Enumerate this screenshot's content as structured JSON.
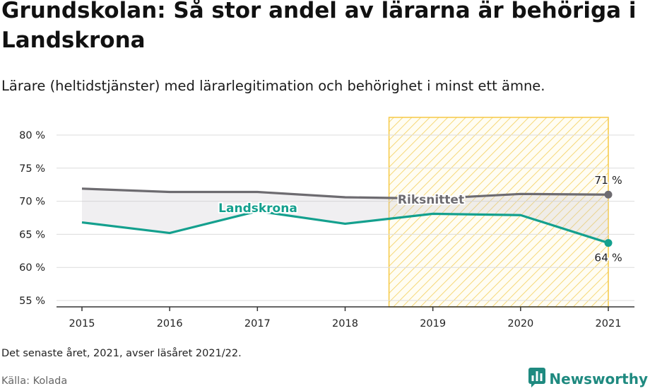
{
  "title": "Grundskolan: Så stor andel av lärarna är behöriga i Landskrona",
  "subtitle": "Lärare (heltidstjänster) med lärarlegitimation och behörighet i minst ett ämne.",
  "note": "Det senaste året, 2021, avser läsåret 2021/22.",
  "source": "Källa: Kolada",
  "brand": {
    "name": "Newsworthy",
    "icon": "bar-chart-speech-bubble-icon",
    "color": "#1f8a80"
  },
  "chart_data": {
    "type": "line",
    "title": "",
    "xlabel": "",
    "ylabel": "",
    "x": [
      2015,
      2016,
      2017,
      2018,
      2019,
      2020,
      2021
    ],
    "x_tick_labels": [
      "2015",
      "2016",
      "2017",
      "2018",
      "2019",
      "2020",
      "2021"
    ],
    "ylim": [
      55,
      80
    ],
    "y_ticks": [
      55,
      60,
      65,
      70,
      75,
      80
    ],
    "y_tick_labels": [
      "55 %",
      "60 %",
      "65 %",
      "70 %",
      "75 %",
      "80 %"
    ],
    "grid": true,
    "series": [
      {
        "name": "Riksnittet",
        "values": [
          71.9,
          71.4,
          71.4,
          70.6,
          70.4,
          71.1,
          71.0
        ],
        "color": "#6d6b70",
        "end_label": "71 %"
      },
      {
        "name": "Landskrona",
        "values": [
          66.8,
          65.2,
          68.5,
          66.6,
          68.1,
          67.9,
          63.7
        ],
        "color": "#14a08e",
        "end_label": "64 %"
      }
    ],
    "gap_fill": "between-series",
    "highlight": {
      "from": 2018.5,
      "to": 2021,
      "pattern": "diagonal-hatch",
      "color": "#f6c945"
    }
  }
}
